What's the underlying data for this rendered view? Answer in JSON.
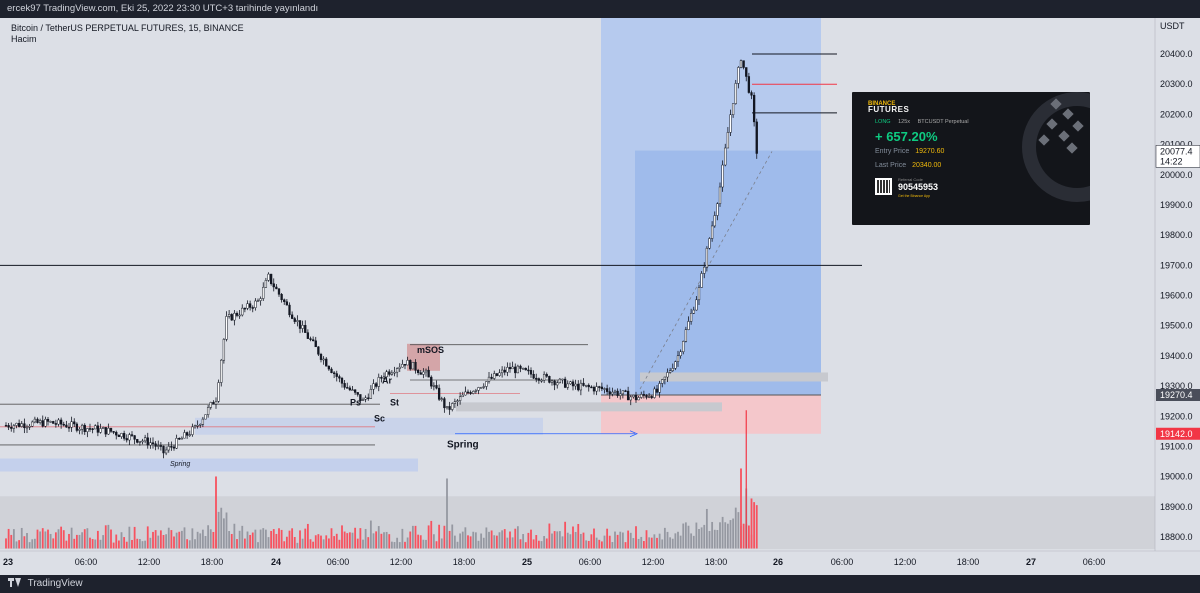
{
  "header": {
    "publish_line": "ercek97 TradingView.com, Eki 25, 2022 23:30 UTC+3 tarihinde yayınlandı"
  },
  "footer": {
    "brand": "TradingView"
  },
  "legend": {
    "symbol": "Bitcoin / TetherUS PERPETUAL FUTURES, 15, BINANCE",
    "volume_label": "Hacim"
  },
  "price_axis": {
    "currency": "USDT",
    "ticks": [
      "20400.0",
      "20300.0",
      "20200.0",
      "20100.0",
      "20000.0",
      "19900.0",
      "19800.0",
      "19700.0",
      "19600.0",
      "19500.0",
      "19400.0",
      "19300.0",
      "19200.0",
      "19100.0",
      "19000.0",
      "18900.0",
      "18800.0"
    ],
    "badges": [
      {
        "text": "20077.4",
        "sub": "14:22",
        "value": 20077.4,
        "color": "#ffffff",
        "text_color": "#131722"
      },
      {
        "text": "19270.4",
        "value": 19270.4,
        "color": "#4a4e5a",
        "text_color": "#ffffff"
      },
      {
        "text": "19142.0",
        "value": 19142.0,
        "color": "#f23645",
        "text_color": "#ffffff"
      }
    ]
  },
  "time_axis": {
    "ticks": [
      "23",
      "06:00",
      "12:00",
      "18:00",
      "24",
      "06:00",
      "12:00",
      "18:00",
      "25",
      "06:00",
      "12:00",
      "18:00",
      "26",
      "06:00",
      "12:00",
      "18:00",
      "27",
      "06:00"
    ]
  },
  "annotations": [
    {
      "text": "mSOS"
    },
    {
      "text": "Ar"
    },
    {
      "text": "Ps"
    },
    {
      "text": "Sc"
    },
    {
      "text": "St"
    },
    {
      "text": "Spring"
    },
    {
      "text": "Spring"
    }
  ],
  "binance_card": {
    "brand_top": "BINANCE",
    "brand_bottom": "FUTURES",
    "side": "LONG",
    "leverage": "125x",
    "contract": "BTCUSDT Perpetual",
    "pnl": "+ 657.20%",
    "entry_label": "Entry Price",
    "entry_value": "19270.60",
    "last_label": "Last Price",
    "last_value": "20340.00",
    "referral_label": "Referral Code",
    "referral_code": "90545953",
    "referral_sub": "Get the Binance App"
  },
  "chart_data": {
    "type": "candlestick",
    "title": "Bitcoin / TetherUS PERPETUAL FUTURES, 15, BINANCE",
    "ylabel": "USDT",
    "ylim": [
      18730,
      20530
    ],
    "colors": {
      "up": "#131722",
      "down": "#131722",
      "volume_up": "#9598a1",
      "volume_down": "#f7525f",
      "long_profit": "#a9c3f0",
      "long_stop": "#f6c4c8"
    },
    "price_path": [
      {
        "t": "23 00:00",
        "p": 19170
      },
      {
        "t": "23 04:00",
        "p": 19180
      },
      {
        "t": "23 10:00",
        "p": 19150
      },
      {
        "t": "23 14:00",
        "p": 19110
      },
      {
        "t": "23 15:00",
        "p": 19080
      },
      {
        "t": "23 18:00",
        "p": 19160
      },
      {
        "t": "23 20:00",
        "p": 19260
      },
      {
        "t": "23 21:00",
        "p": 19520
      },
      {
        "t": "24 00:00",
        "p": 19580
      },
      {
        "t": "24 01:00",
        "p": 19660
      },
      {
        "t": "24 03:00",
        "p": 19550
      },
      {
        "t": "24 06:00",
        "p": 19400
      },
      {
        "t": "24 08:00",
        "p": 19310
      },
      {
        "t": "24 10:00",
        "p": 19250
      },
      {
        "t": "24 12:00",
        "p": 19340
      },
      {
        "t": "24 14:00",
        "p": 19380
      },
      {
        "t": "24 16:00",
        "p": 19340
      },
      {
        "t": "24 18:00",
        "p": 19220
      },
      {
        "t": "24 20:00",
        "p": 19280
      },
      {
        "t": "25 00:00",
        "p": 19360
      },
      {
        "t": "25 03:00",
        "p": 19330
      },
      {
        "t": "25 06:00",
        "p": 19300
      },
      {
        "t": "25 09:00",
        "p": 19290
      },
      {
        "t": "25 12:00",
        "p": 19260
      },
      {
        "t": "25 14:00",
        "p": 19280
      },
      {
        "t": "25 16:00",
        "p": 19400
      },
      {
        "t": "25 18:00",
        "p": 19620
      },
      {
        "t": "25 20:00",
        "p": 19960
      },
      {
        "t": "25 21:00",
        "p": 20200
      },
      {
        "t": "25 22:00",
        "p": 20390
      },
      {
        "t": "25 23:00",
        "p": 20250
      },
      {
        "t": "25 23:30",
        "p": 20077.4
      }
    ],
    "levels": [
      {
        "price": 19700,
        "label": "horizontal level"
      },
      {
        "price": 19270.4,
        "label": "entry"
      },
      {
        "price": 19142.0,
        "label": "stop"
      }
    ]
  }
}
